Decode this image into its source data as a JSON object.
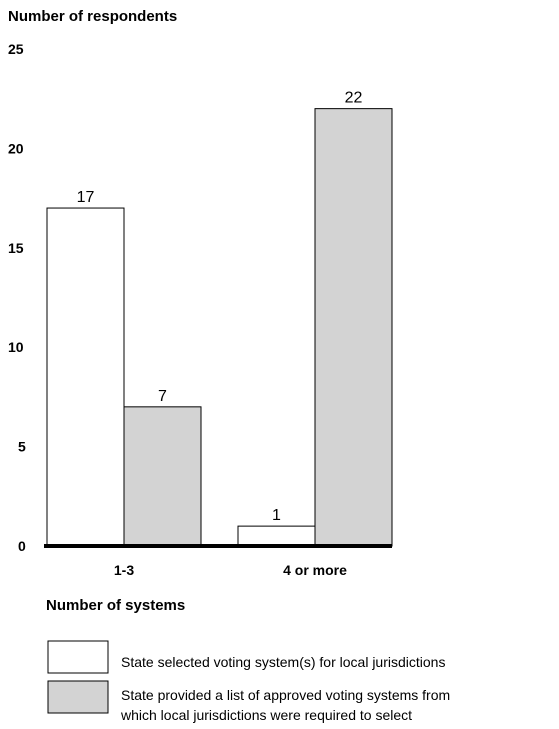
{
  "chart_data": {
    "type": "bar",
    "title": "",
    "ylabel": "Number of respondents",
    "xlabel": "Number of systems",
    "ylim": [
      0,
      25
    ],
    "yticks": [
      0,
      5,
      10,
      15,
      20,
      25
    ],
    "categories": [
      "1-3",
      "4 or more"
    ],
    "series": [
      {
        "name": "State selected voting system(s) for local jurisdictions",
        "values": [
          17,
          1
        ],
        "color": "#ffffff"
      },
      {
        "name": "State provided a list of approved voting systems from which local jurisdictions were required to select",
        "values": [
          7,
          22
        ],
        "color": "#d3d3d3"
      }
    ],
    "legend": [
      {
        "line1": "State selected voting system(s) for local jurisdictions",
        "line2": ""
      },
      {
        "line1": "State provided a list of approved voting systems from",
        "line2": "which local jurisdictions were required to select"
      }
    ],
    "grid": false,
    "legend_placement": "bottom-left"
  }
}
